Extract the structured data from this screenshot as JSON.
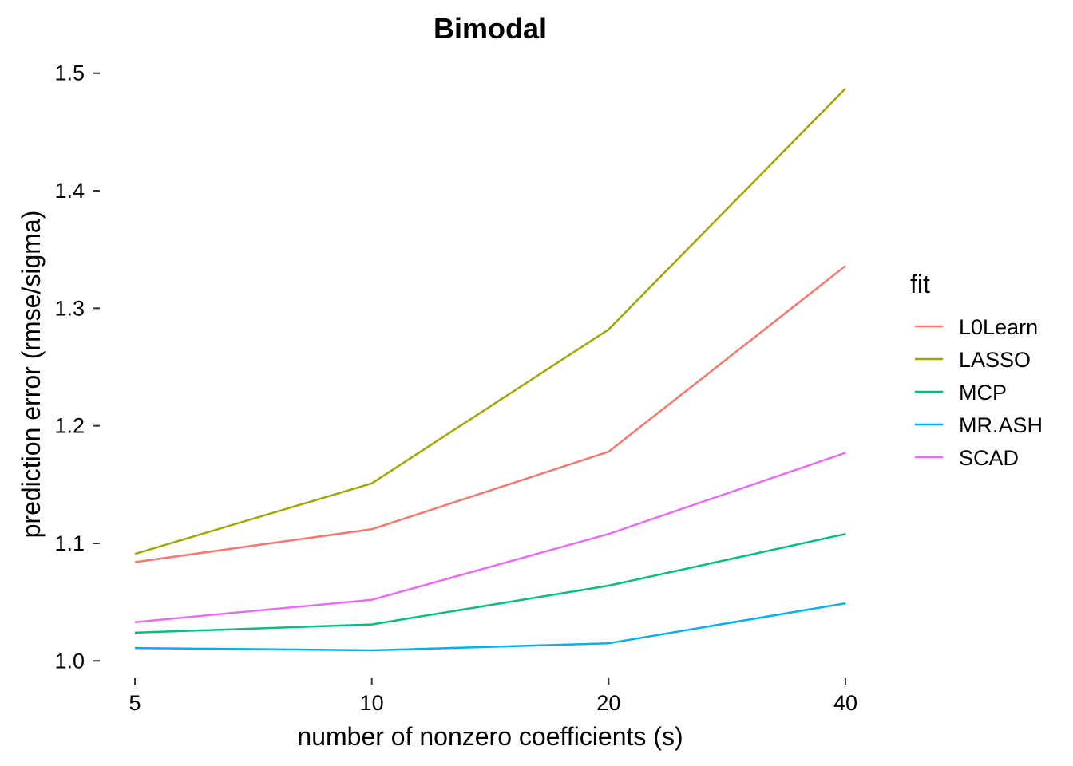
{
  "chart_data": {
    "type": "line",
    "title": "Bimodal",
    "xlabel": "number of nonzero coefficients (s)",
    "ylabel": "prediction error (rmse/sigma)",
    "x": [
      5,
      10,
      20,
      40
    ],
    "x_scale": "log2",
    "x_ticks": [
      "5",
      "10",
      "20",
      "40"
    ],
    "y_ticks": [
      "1.0",
      "1.1",
      "1.2",
      "1.3",
      "1.4",
      "1.5"
    ],
    "ylim": [
      0.99,
      1.51
    ],
    "grid": false,
    "legend_title": "fit",
    "legend_position": "right",
    "series": [
      {
        "name": "L0Learn",
        "color": "#F8766D",
        "values": [
          1.084,
          1.112,
          1.178,
          1.336
        ]
      },
      {
        "name": "LASSO",
        "color": "#A3A500",
        "values": [
          1.091,
          1.151,
          1.282,
          1.487
        ]
      },
      {
        "name": "MCP",
        "color": "#00BF7D",
        "values": [
          1.024,
          1.031,
          1.064,
          1.108
        ]
      },
      {
        "name": "MR.ASH",
        "color": "#00B0F6",
        "values": [
          1.011,
          1.009,
          1.015,
          1.049
        ]
      },
      {
        "name": "SCAD",
        "color": "#E76BF3",
        "values": [
          1.033,
          1.052,
          1.108,
          1.177
        ]
      }
    ]
  }
}
